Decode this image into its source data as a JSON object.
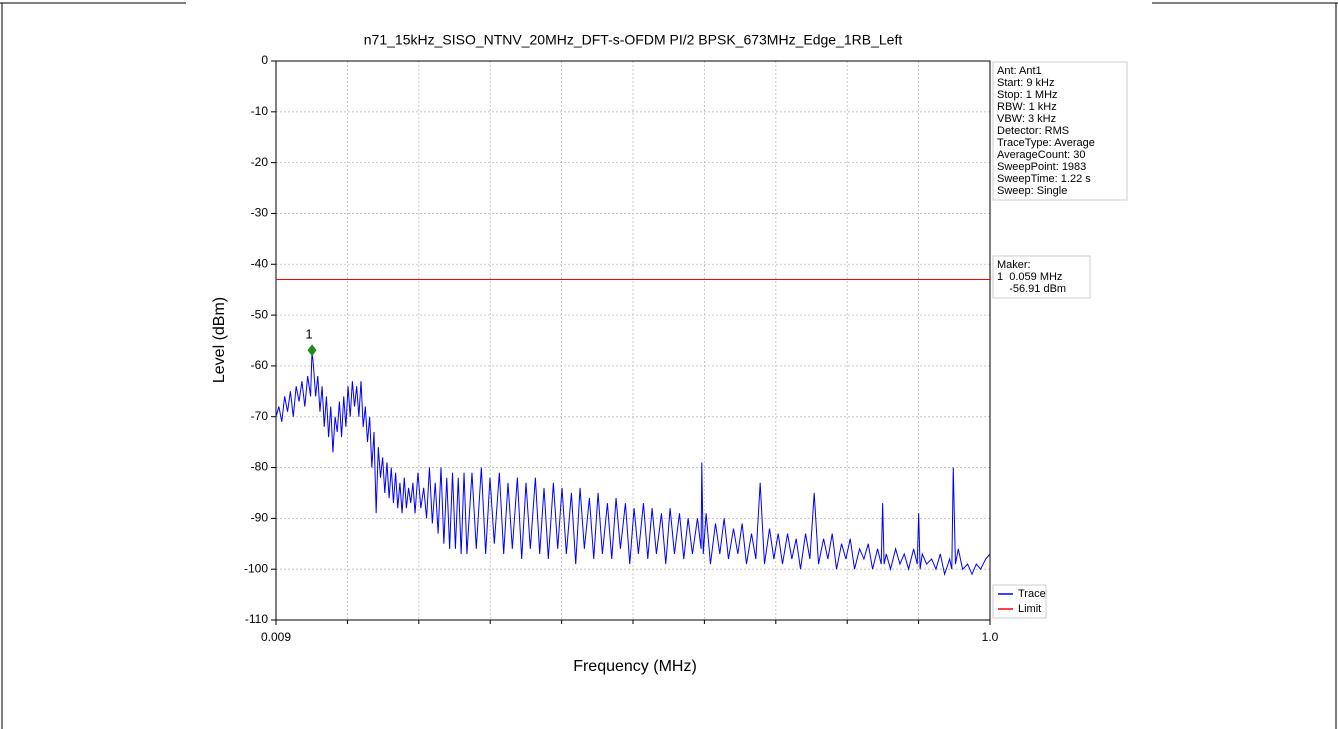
{
  "chart_data": {
    "type": "line",
    "title": "n71_15kHz_SISO_NTNV_20MHz_DFT-s-OFDM PI/2 BPSK_673MHz_Edge_1RB_Left",
    "x_label": "Frequency (MHz)",
    "y_label": "Level (dBm)",
    "xlim": [
      0.009,
      1.0
    ],
    "xticks": [
      0.009,
      {
        "value": 1.0,
        "label": "1.0"
      }
    ],
    "ylim": [
      -110,
      0
    ],
    "yticks": [
      -110,
      -100,
      -90,
      -80,
      -70,
      -60,
      -50,
      -40,
      -30,
      -20,
      -10,
      0
    ],
    "grid": true,
    "series": [
      {
        "name": "Trace",
        "color": "#0000ff",
        "x": [
          0.009,
          0.013,
          0.017,
          0.021,
          0.025,
          0.029,
          0.033,
          0.037,
          0.041,
          0.045,
          0.049,
          0.053,
          0.057,
          0.059,
          0.061,
          0.064,
          0.067,
          0.07,
          0.073,
          0.076,
          0.079,
          0.082,
          0.085,
          0.088,
          0.091,
          0.094,
          0.097,
          0.1,
          0.103,
          0.106,
          0.109,
          0.112,
          0.115,
          0.118,
          0.121,
          0.124,
          0.127,
          0.13,
          0.133,
          0.136,
          0.139,
          0.142,
          0.145,
          0.148,
          0.151,
          0.154,
          0.157,
          0.16,
          0.163,
          0.166,
          0.169,
          0.172,
          0.175,
          0.178,
          0.181,
          0.184,
          0.187,
          0.19,
          0.193,
          0.196,
          0.199,
          0.202,
          0.206,
          0.21,
          0.214,
          0.218,
          0.222,
          0.226,
          0.23,
          0.234,
          0.238,
          0.242,
          0.246,
          0.25,
          0.254,
          0.258,
          0.262,
          0.266,
          0.27,
          0.274,
          0.281,
          0.287,
          0.294,
          0.3,
          0.306,
          0.312,
          0.319,
          0.325,
          0.331,
          0.337,
          0.344,
          0.35,
          0.356,
          0.362,
          0.369,
          0.375,
          0.381,
          0.387,
          0.394,
          0.4,
          0.406,
          0.412,
          0.419,
          0.425,
          0.431,
          0.437,
          0.444,
          0.45,
          0.456,
          0.462,
          0.469,
          0.475,
          0.481,
          0.487,
          0.494,
          0.5,
          0.506,
          0.512,
          0.519,
          0.525,
          0.531,
          0.537,
          0.544,
          0.55,
          0.556,
          0.562,
          0.569,
          0.575,
          0.581,
          0.587,
          0.594,
          0.599,
          0.6,
          0.602,
          0.606,
          0.612,
          0.619,
          0.625,
          0.631,
          0.637,
          0.644,
          0.65,
          0.656,
          0.662,
          0.669,
          0.675,
          0.681,
          0.687,
          0.694,
          0.7,
          0.706,
          0.712,
          0.719,
          0.725,
          0.731,
          0.737,
          0.744,
          0.75,
          0.756,
          0.762,
          0.769,
          0.775,
          0.781,
          0.787,
          0.794,
          0.8,
          0.806,
          0.812,
          0.819,
          0.825,
          0.831,
          0.837,
          0.844,
          0.849,
          0.851,
          0.853,
          0.856,
          0.862,
          0.869,
          0.875,
          0.881,
          0.887,
          0.894,
          0.899,
          0.901,
          0.903,
          0.906,
          0.912,
          0.919,
          0.925,
          0.931,
          0.937,
          0.944,
          0.947,
          0.949,
          0.952,
          0.956,
          0.962,
          0.969,
          0.975,
          0.981,
          0.987,
          0.994,
          1.0
        ],
        "values": [
          -70,
          -68,
          -71,
          -66,
          -69,
          -65,
          -70,
          -64,
          -67,
          -63,
          -68,
          -62,
          -66,
          -57,
          -60,
          -66,
          -62,
          -69,
          -64,
          -72,
          -66,
          -74,
          -68,
          -77,
          -70,
          -73,
          -67,
          -74,
          -66,
          -72,
          -64,
          -70,
          -63,
          -68,
          -64,
          -70,
          -63,
          -72,
          -68,
          -75,
          -70,
          -80,
          -73,
          -89,
          -76,
          -82,
          -78,
          -85,
          -79,
          -86,
          -80,
          -87,
          -81,
          -88,
          -83,
          -89,
          -82,
          -88,
          -84,
          -87,
          -83,
          -89,
          -81,
          -88,
          -84,
          -90,
          -80,
          -91,
          -83,
          -93,
          -80,
          -95,
          -82,
          -96,
          -81,
          -96,
          -82,
          -97,
          -81,
          -97,
          -81,
          -96,
          -80,
          -97,
          -82,
          -95,
          -81,
          -97,
          -83,
          -96,
          -82,
          -98,
          -83,
          -96,
          -82,
          -97,
          -84,
          -98,
          -83,
          -96,
          -84,
          -97,
          -85,
          -99,
          -84,
          -96,
          -86,
          -98,
          -85,
          -97,
          -87,
          -98,
          -86,
          -96,
          -87,
          -99,
          -88,
          -97,
          -87,
          -98,
          -88,
          -97,
          -89,
          -99,
          -88,
          -97,
          -89,
          -98,
          -90,
          -97,
          -90,
          -96,
          -79,
          -97,
          -89,
          -99,
          -91,
          -97,
          -90,
          -98,
          -92,
          -97,
          -91,
          -99,
          -93,
          -98,
          -83,
          -99,
          -92,
          -98,
          -93,
          -99,
          -93,
          -98,
          -94,
          -100,
          -93,
          -98,
          -85,
          -99,
          -94,
          -98,
          -93,
          -100,
          -95,
          -98,
          -94,
          -100,
          -96,
          -98,
          -95,
          -100,
          -96,
          -99,
          -87,
          -99,
          -97,
          -100,
          -96,
          -99,
          -97,
          -100,
          -96,
          -99,
          -89,
          -100,
          -97,
          -99,
          -98,
          -100,
          -97,
          -101,
          -98,
          -100,
          -80,
          -99,
          -96,
          -100,
          -99,
          -101,
          -99,
          -100,
          -98,
          -97
        ]
      },
      {
        "name": "Limit",
        "color": "#ff0000",
        "value": -43
      }
    ],
    "marker": {
      "label": "1",
      "x": 0.059,
      "y": -56.91,
      "color": "#228b22"
    },
    "info_box": [
      "Ant: Ant1",
      "Start: 9 kHz",
      "Stop: 1 MHz",
      "RBW: 1 kHz",
      "VBW: 3 kHz",
      "Detector: RMS",
      "TraceType: Average",
      "AverageCount: 30",
      "SweepPoint: 1983",
      "SweepTime: 1.22 s",
      "Sweep: Single"
    ],
    "marker_box": [
      "Maker:",
      "1  0.059 MHz",
      "    -56.91 dBm"
    ]
  }
}
